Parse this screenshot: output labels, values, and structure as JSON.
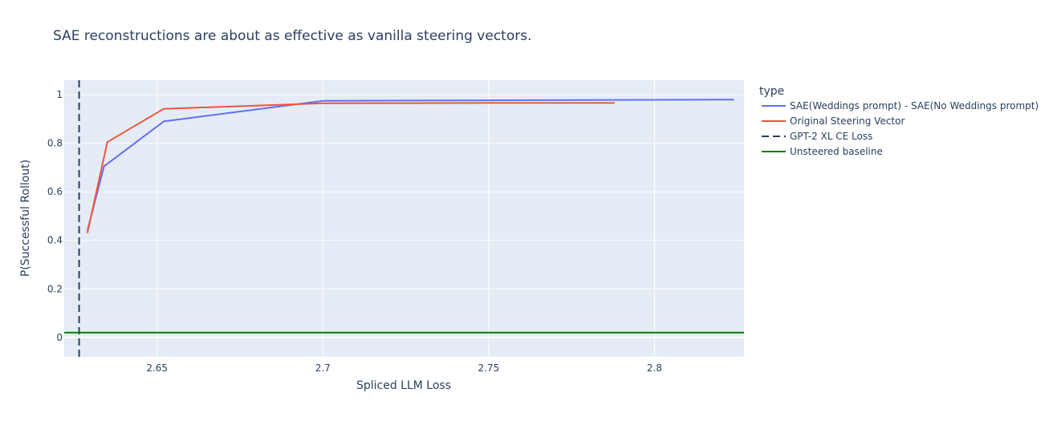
{
  "chart_data": {
    "type": "line",
    "title": "SAE reconstructions are about as effective as vanilla steering vectors.",
    "xlabel": "Spliced LLM Loss",
    "ylabel": "P(Successful Rollout)",
    "xlim": [
      2.622,
      2.827
    ],
    "ylim": [
      -0.08,
      1.06
    ],
    "x_ticks": [
      2.65,
      2.7,
      2.75,
      2.8
    ],
    "x_tick_labels": [
      "2.65",
      "2.7",
      "2.75",
      "2.8"
    ],
    "y_ticks": [
      0,
      0.2,
      0.4,
      0.6,
      0.8,
      1
    ],
    "y_tick_labels": [
      "0",
      "0.2",
      "0.4",
      "0.6",
      "0.8",
      "1"
    ],
    "grid": true,
    "legend_title": "type",
    "legend_position": "right",
    "series": [
      {
        "name": "SAE(Weddings prompt) - SAE(No Weddings prompt)",
        "color": "#636efa",
        "style": "solid",
        "x": [
          2.629,
          2.634,
          2.652,
          2.7,
          2.75,
          2.8,
          2.824
        ],
        "y": [
          0.44,
          0.705,
          0.89,
          0.975,
          0.977,
          0.979,
          0.98
        ]
      },
      {
        "name": "Original Steering Vector",
        "color": "#ef553b",
        "style": "solid",
        "x": [
          2.629,
          2.635,
          2.652,
          2.7,
          2.75,
          2.788
        ],
        "y": [
          0.43,
          0.805,
          0.942,
          0.965,
          0.966,
          0.966
        ]
      }
    ],
    "reference_lines": [
      {
        "name": "GPT-2 XL CE Loss",
        "orientation": "vertical",
        "value": 2.6265,
        "color": "#2a3f5f",
        "style": "dash"
      },
      {
        "name": "Unsteered baseline",
        "orientation": "horizontal",
        "value": 0.02,
        "color": "#008000",
        "style": "solid"
      }
    ]
  }
}
